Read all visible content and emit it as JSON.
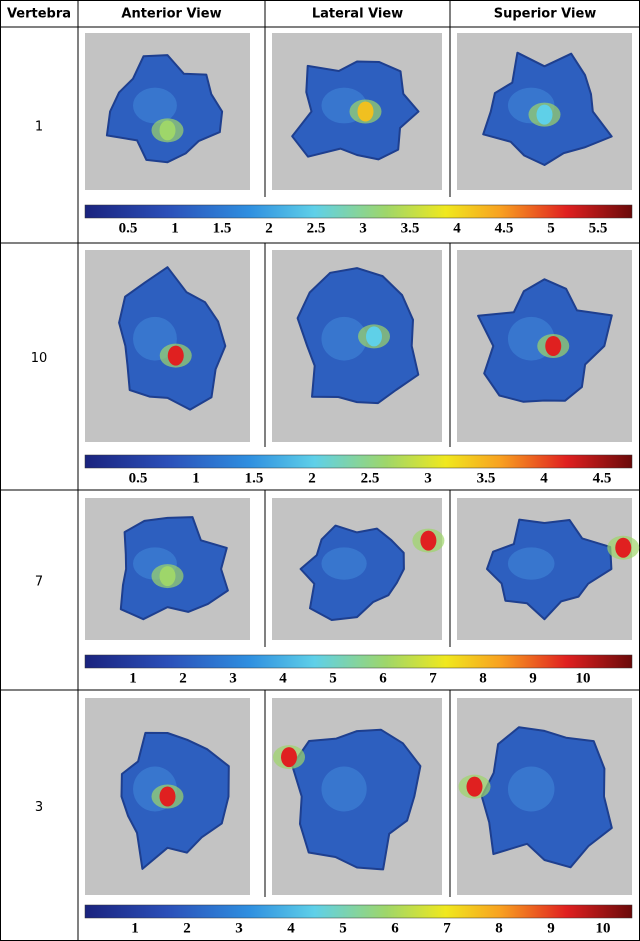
{
  "table": {
    "headers": [
      "Vertebra",
      "Anterior View",
      "Lateral View",
      "Superior View"
    ],
    "rows": [
      {
        "vertebra": "1",
        "colorbar_ticks": [
          0.5,
          1,
          1.5,
          2,
          2.5,
          3,
          3.5,
          4,
          4.5,
          5,
          5.5
        ]
      },
      {
        "vertebra": "10",
        "colorbar_ticks": [
          0.5,
          1,
          1.5,
          2,
          2.5,
          3,
          3.5,
          4,
          4.5
        ]
      },
      {
        "vertebra": "7",
        "colorbar_ticks": [
          1,
          2,
          3,
          4,
          5,
          6,
          7,
          8,
          9,
          10
        ]
      },
      {
        "vertebra": "3",
        "colorbar_ticks": [
          1,
          2,
          3,
          4,
          5,
          6,
          7,
          8,
          9,
          10
        ]
      }
    ]
  }
}
